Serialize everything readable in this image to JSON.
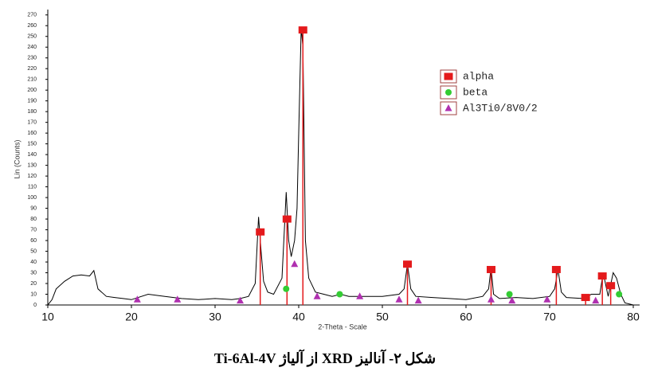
{
  "chart_data": {
    "type": "scatter",
    "caption": "شکل ۲- آنالیز XRD از آلیاژ Ti-6Al-4V",
    "xlabel": "2-Theta - Scale",
    "ylabel": "Lin (Counts)",
    "xlim": [
      10,
      80
    ],
    "ylim": [
      0,
      275
    ],
    "xticks": [
      10,
      20,
      30,
      40,
      50,
      60,
      70,
      80
    ],
    "yticks": [
      0,
      10,
      20,
      30,
      40,
      50,
      60,
      70,
      80,
      90,
      100,
      110,
      120,
      130,
      140,
      150,
      160,
      170,
      180,
      190,
      200,
      210,
      220,
      230,
      240,
      250,
      260,
      270
    ],
    "legend": "upper right",
    "pattern": {
      "color": "#000000",
      "x": [
        10,
        10.5,
        11,
        12,
        13,
        14,
        15,
        15.5,
        16,
        17,
        18,
        19,
        20,
        22,
        24,
        26,
        28,
        30,
        32,
        33,
        34,
        34.8,
        35.2,
        35.5,
        35.8,
        36.3,
        37,
        38,
        38.5,
        38.8,
        39.1,
        39.5,
        39.8,
        40.0,
        40.3,
        40.5,
        40.8,
        41.2,
        42,
        43,
        44,
        45,
        46,
        48,
        50,
        52,
        52.6,
        53,
        53.4,
        54,
        56,
        58,
        60,
        62,
        62.7,
        63,
        63.3,
        64,
        66,
        68,
        70,
        70.6,
        71,
        71.4,
        72,
        74,
        75,
        76,
        76.4,
        77,
        77.6,
        78,
        78.5,
        79,
        80
      ],
      "values": [
        0,
        5,
        15,
        22,
        27,
        28,
        27,
        32,
        15,
        8,
        7,
        6,
        5,
        10,
        8,
        6,
        5,
        6,
        5,
        6,
        8,
        20,
        82,
        50,
        22,
        12,
        10,
        25,
        105,
        60,
        45,
        60,
        90,
        160,
        258,
        240,
        60,
        25,
        12,
        10,
        8,
        10,
        8,
        8,
        8,
        10,
        15,
        38,
        15,
        8,
        7,
        6,
        5,
        8,
        15,
        35,
        10,
        6,
        7,
        6,
        8,
        15,
        33,
        12,
        7,
        6,
        10,
        10,
        30,
        8,
        30,
        25,
        10,
        2,
        0
      ]
    },
    "series": [
      {
        "name": "alpha",
        "color": "#e41a1c",
        "marker": "square",
        "sticks": true,
        "x": [
          35.4,
          38.6,
          40.5,
          53.0,
          63.0,
          70.8,
          74.3,
          76.3,
          77.3
        ],
        "values": [
          68,
          80,
          256,
          38,
          33,
          33,
          7,
          27,
          18
        ]
      },
      {
        "name": "beta",
        "color": "#33cc33",
        "marker": "circle",
        "sticks": false,
        "x": [
          38.5,
          44.9,
          65.2,
          78.3
        ],
        "values": [
          15,
          10,
          10,
          10
        ]
      },
      {
        "name": "Al3Ti0/8V0/2",
        "color": "#b030b0",
        "marker": "triangle",
        "sticks": false,
        "x": [
          20.7,
          25.5,
          33.0,
          39.5,
          42.2,
          47.3,
          52.0,
          54.3,
          63.0,
          65.5,
          69.7,
          75.5
        ],
        "values": [
          5,
          5,
          4,
          38,
          8,
          8,
          5,
          4,
          5,
          4,
          5,
          4
        ]
      }
    ]
  }
}
